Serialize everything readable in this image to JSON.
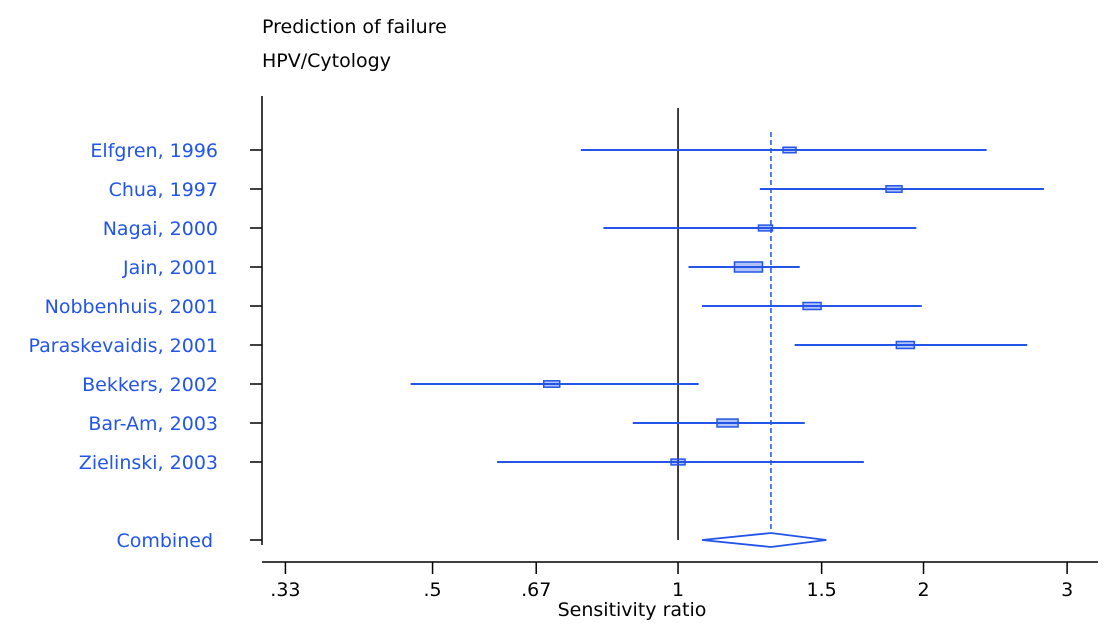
{
  "chart_data": {
    "type": "forest",
    "title": "Prediction of failure",
    "subtitle": "HPV/Cytology",
    "xlabel": "Sensitivity ratio",
    "xscale": "log",
    "xlim": [
      0.325,
      3.12
    ],
    "ticks": [
      {
        "value": 0.33,
        "label": ".33"
      },
      {
        "value": 0.5,
        "label": ".5"
      },
      {
        "value": 0.67,
        "label": ".67"
      },
      {
        "value": 1,
        "label": "1"
      },
      {
        "value": 1.5,
        "label": "1.5"
      },
      {
        "value": 2,
        "label": "2"
      },
      {
        "value": 3,
        "label": "3"
      }
    ],
    "null_line": 1,
    "pooled_line": 1.3,
    "studies": [
      {
        "label": "Elfgren, 1996",
        "estimate": 1.37,
        "lower": 0.76,
        "upper": 2.39,
        "weight": 0.5
      },
      {
        "label": "Chua, 1997",
        "estimate": 1.84,
        "lower": 1.26,
        "upper": 2.81,
        "weight": 0.8
      },
      {
        "label": "Nagai, 2000",
        "estimate": 1.28,
        "lower": 0.81,
        "upper": 1.96,
        "weight": 0.6
      },
      {
        "label": "Jain, 2001",
        "estimate": 1.22,
        "lower": 1.03,
        "upper": 1.41,
        "weight": 2.0
      },
      {
        "label": "Nobbenhuis, 2001",
        "estimate": 1.46,
        "lower": 1.07,
        "upper": 1.99,
        "weight": 1.0
      },
      {
        "label": "Paraskevaidis, 2001",
        "estimate": 1.9,
        "lower": 1.39,
        "upper": 2.68,
        "weight": 1.0
      },
      {
        "label": "Bekkers, 2002",
        "estimate": 0.7,
        "lower": 0.47,
        "upper": 1.06,
        "weight": 0.8
      },
      {
        "label": "Bar-Am, 2003",
        "estimate": 1.15,
        "lower": 0.88,
        "upper": 1.43,
        "weight": 1.3
      },
      {
        "label": "Zielinski, 2003",
        "estimate": 1.0,
        "lower": 0.6,
        "upper": 1.69,
        "weight": 0.6
      }
    ],
    "combined": {
      "label": "Combined",
      "estimate": 1.3,
      "lower": 1.07,
      "upper": 1.52
    },
    "colors": {
      "series": "#2255e8",
      "axis": "#000000",
      "text": "#000000"
    }
  }
}
